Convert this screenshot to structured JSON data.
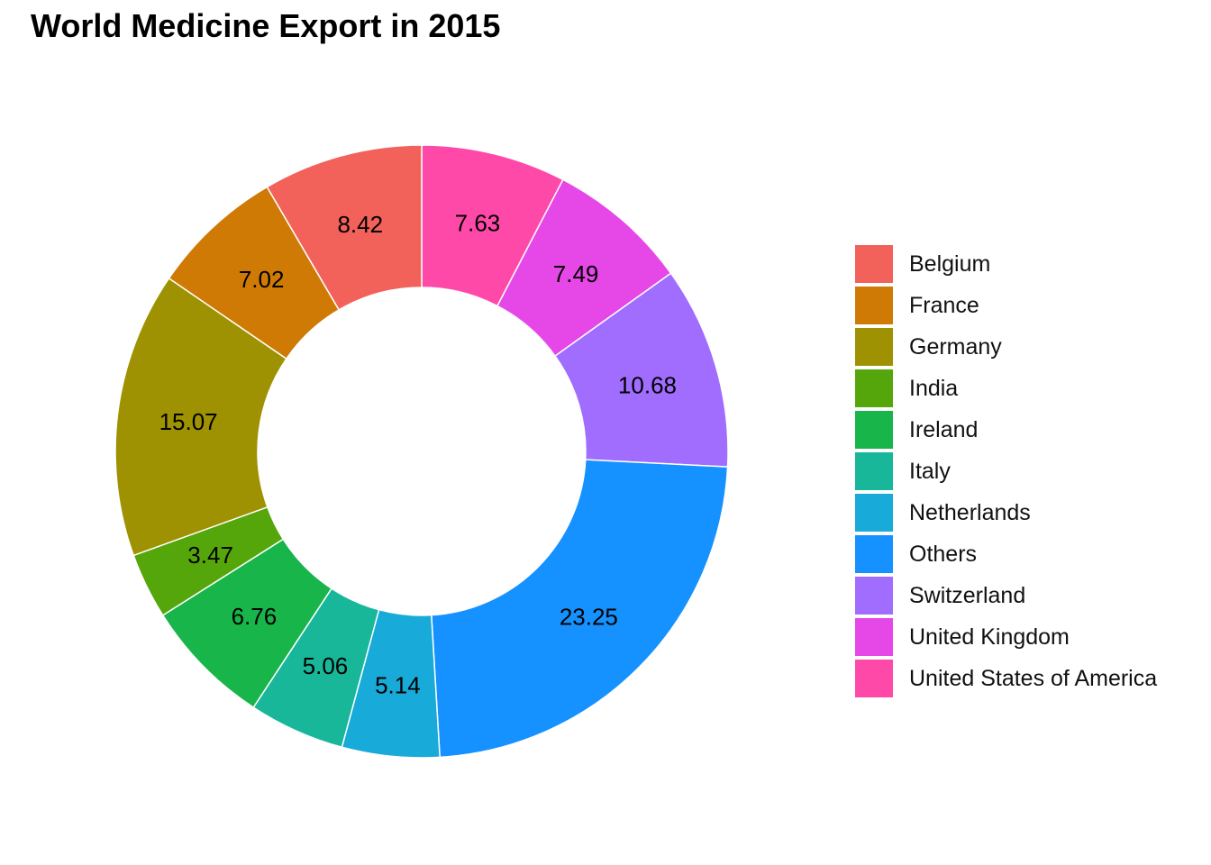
{
  "chart_data": {
    "type": "pie",
    "title": "World Medicine Export in 2015",
    "donut": true,
    "direction": "clockwise",
    "start": "top",
    "legend_position": "right",
    "categories": [
      "Belgium",
      "France",
      "Germany",
      "India",
      "Ireland",
      "Italy",
      "Netherlands",
      "Others",
      "Switzerland",
      "United Kingdom",
      "United States of America"
    ],
    "values": [
      8.42,
      7.02,
      15.07,
      3.47,
      6.76,
      5.06,
      5.14,
      23.25,
      10.68,
      7.49,
      7.63
    ],
    "value_labels": [
      "8.42",
      "7.02",
      "15.07",
      "3.47",
      "6.76",
      "5.06",
      "5.14",
      "23.25",
      "10.68",
      "7.49",
      "7.63"
    ],
    "colors": [
      "#F8766D",
      "#D89000",
      "#A3A500",
      "#39B600",
      "#00BF7D",
      "#00BFC4",
      "#00B0F6",
      "#9590FF",
      "#E76BF3",
      "#FF62BC",
      "#FF4FA6"
    ],
    "drawing_order": [
      10,
      9,
      8,
      7,
      6,
      5,
      4,
      3,
      2,
      1,
      0
    ],
    "slice_colors": [
      "#F3615B",
      "#D07A06",
      "#9E9202",
      "#55A60A",
      "#18B54A",
      "#18B79A",
      "#18AAD8",
      "#1592FF",
      "#A06DFF",
      "#E548E7",
      "#FF49A8"
    ]
  }
}
